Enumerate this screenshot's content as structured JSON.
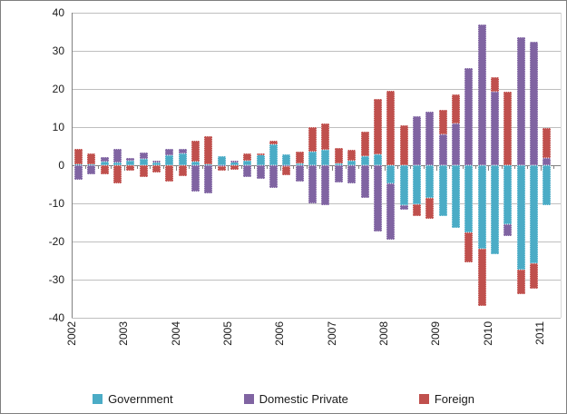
{
  "chart_data": {
    "type": "bar",
    "stacked": true,
    "title": "",
    "xlabel": "",
    "ylabel": "",
    "y_axis": {
      "min": -40,
      "max": 40,
      "step": 10,
      "tick_labels": [
        "40",
        "30",
        "20",
        "10",
        "0",
        "-10",
        "-20",
        "-30",
        "-40"
      ]
    },
    "grid": true,
    "legend_position": "bottom",
    "year_labels": [
      "2002",
      "2003",
      "2004",
      "2005",
      "2006",
      "2007",
      "2008",
      "2009",
      "2010",
      "2011"
    ],
    "categories": [
      "2002Q1",
      "2002Q2",
      "2002Q3",
      "2002Q4",
      "2003Q1",
      "2003Q2",
      "2003Q3",
      "2003Q4",
      "2004Q1",
      "2004Q2",
      "2004Q3",
      "2004Q4",
      "2005Q1",
      "2005Q2",
      "2005Q3",
      "2005Q4",
      "2006Q1",
      "2006Q2",
      "2006Q3",
      "2006Q4",
      "2007Q1",
      "2007Q2",
      "2007Q3",
      "2007Q4",
      "2008Q1",
      "2008Q2",
      "2008Q3",
      "2008Q4",
      "2009Q1",
      "2009Q2",
      "2009Q3",
      "2009Q4",
      "2010Q1",
      "2010Q2",
      "2010Q3",
      "2010Q4",
      "2011Q1"
    ],
    "series": [
      {
        "name": "Government",
        "color": "#4BACC6",
        "values": [
          0.3,
          0.3,
          0.9,
          0.8,
          1.2,
          1.7,
          0.8,
          2.6,
          3.0,
          1.0,
          0.3,
          2.4,
          1.0,
          1.2,
          2.8,
          5.5,
          2.8,
          0.4,
          3.6,
          4.0,
          0.5,
          1.2,
          2.4,
          2.8,
          -4.8,
          -10.4,
          -10.2,
          -8.5,
          -13.3,
          -16.5,
          -17.7,
          -21.8,
          -23.4,
          -15.5,
          -27.4,
          -25.8,
          -10.5
        ]
      },
      {
        "name": "Domestic Private",
        "color": "#8064A2",
        "values": [
          -3.7,
          -2.4,
          1.2,
          3.6,
          0.8,
          1.7,
          0.4,
          1.6,
          1.2,
          -7.0,
          -7.3,
          -0.3,
          0.3,
          -3.2,
          -3.6,
          -6.0,
          -0.2,
          -4.4,
          -10.1,
          -10.5,
          -4.5,
          -4.7,
          -8.5,
          -17.3,
          -14.7,
          -1.3,
          12.9,
          14.1,
          8.1,
          11.0,
          25.4,
          37.0,
          19.4,
          -3.0,
          33.5,
          32.4,
          2.0
        ]
      },
      {
        "name": "Foreign",
        "color": "#C0504D",
        "values": [
          4.0,
          2.7,
          -2.3,
          -4.8,
          -1.5,
          -3.0,
          -2.0,
          -4.3,
          -2.8,
          5.5,
          7.4,
          -1.2,
          -1.2,
          2.0,
          0.4,
          1.0,
          -2.4,
          3.2,
          6.4,
          6.9,
          4.0,
          2.8,
          6.5,
          14.7,
          19.5,
          10.5,
          -3.2,
          -5.6,
          6.4,
          7.5,
          -7.7,
          -15.2,
          3.6,
          19.4,
          -6.5,
          -6.5,
          7.7
        ]
      }
    ]
  }
}
